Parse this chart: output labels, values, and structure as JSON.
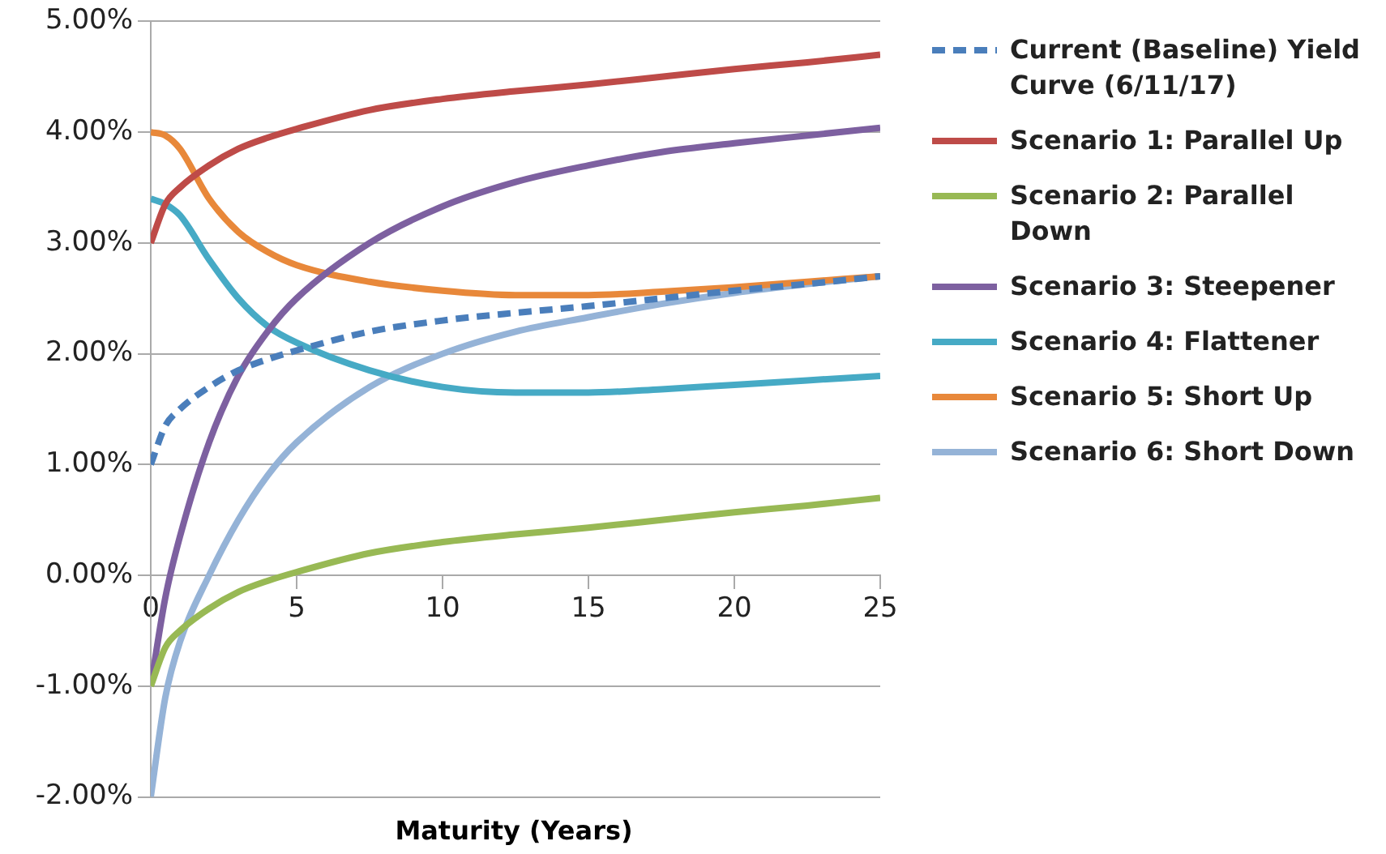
{
  "chart_data": {
    "type": "line",
    "xlabel": "Maturity (Years)",
    "xlim": [
      0,
      25
    ],
    "xticks": [
      0,
      5,
      10,
      15,
      20,
      25
    ],
    "ylim": [
      -2,
      5
    ],
    "yticks": [
      {
        "value": -2,
        "label": "-2.00%"
      },
      {
        "value": -1,
        "label": "-1.00%"
      },
      {
        "value": 0,
        "label": "0.00%"
      },
      {
        "value": 1,
        "label": "1.00%"
      },
      {
        "value": 2,
        "label": "2.00%"
      },
      {
        "value": 3,
        "label": "3.00%"
      },
      {
        "value": 4,
        "label": "4.00%"
      },
      {
        "value": 5,
        "label": "5.00%"
      }
    ],
    "grid": "y",
    "legend": "right",
    "marker": "none",
    "x": [
      0,
      0.5,
      1,
      2,
      3,
      4,
      5,
      7.5,
      10,
      12.5,
      15,
      17.5,
      20,
      22.5,
      25
    ],
    "series": [
      {
        "name": "Current (Baseline) Yield Curve (6/11/17)",
        "color": "#4a7ebb",
        "line_style": "dashed",
        "values": [
          1.0,
          1.35,
          1.5,
          1.7,
          1.85,
          1.95,
          2.03,
          2.2,
          2.3,
          2.37,
          2.43,
          2.5,
          2.57,
          2.63,
          2.7
        ]
      },
      {
        "name": "Scenario 1: Parallel Up",
        "color": "#be4b48",
        "values": [
          3.0,
          3.35,
          3.5,
          3.7,
          3.85,
          3.95,
          4.03,
          4.2,
          4.3,
          4.37,
          4.43,
          4.5,
          4.57,
          4.63,
          4.7
        ]
      },
      {
        "name": "Scenario 2: Parallel Down",
        "color": "#98b954",
        "values": [
          -1.0,
          -0.65,
          -0.5,
          -0.3,
          -0.15,
          -0.05,
          0.03,
          0.2,
          0.3,
          0.37,
          0.43,
          0.5,
          0.57,
          0.63,
          0.7
        ]
      },
      {
        "name": "Scenario 3: Steepener",
        "color": "#7d60a0",
        "values": [
          -1.0,
          -0.2,
          0.35,
          1.2,
          1.8,
          2.2,
          2.5,
          3.0,
          3.33,
          3.55,
          3.7,
          3.82,
          3.9,
          3.97,
          4.04
        ]
      },
      {
        "name": "Scenario 4: Flattener",
        "color": "#46aac5",
        "values": [
          3.4,
          3.35,
          3.25,
          2.85,
          2.5,
          2.25,
          2.1,
          1.85,
          1.7,
          1.65,
          1.65,
          1.68,
          1.72,
          1.76,
          1.8
        ]
      },
      {
        "name": "Scenario 5: Short Up",
        "color": "#e8883a",
        "values": [
          4.0,
          3.97,
          3.85,
          3.4,
          3.1,
          2.92,
          2.8,
          2.65,
          2.57,
          2.53,
          2.53,
          2.56,
          2.6,
          2.65,
          2.7
        ]
      },
      {
        "name": "Scenario 6: Short Down",
        "color": "#95b3d7",
        "values": [
          -2.0,
          -1.1,
          -0.6,
          0.0,
          0.5,
          0.9,
          1.2,
          1.7,
          2.0,
          2.2,
          2.33,
          2.45,
          2.55,
          2.63,
          2.7
        ]
      }
    ]
  }
}
